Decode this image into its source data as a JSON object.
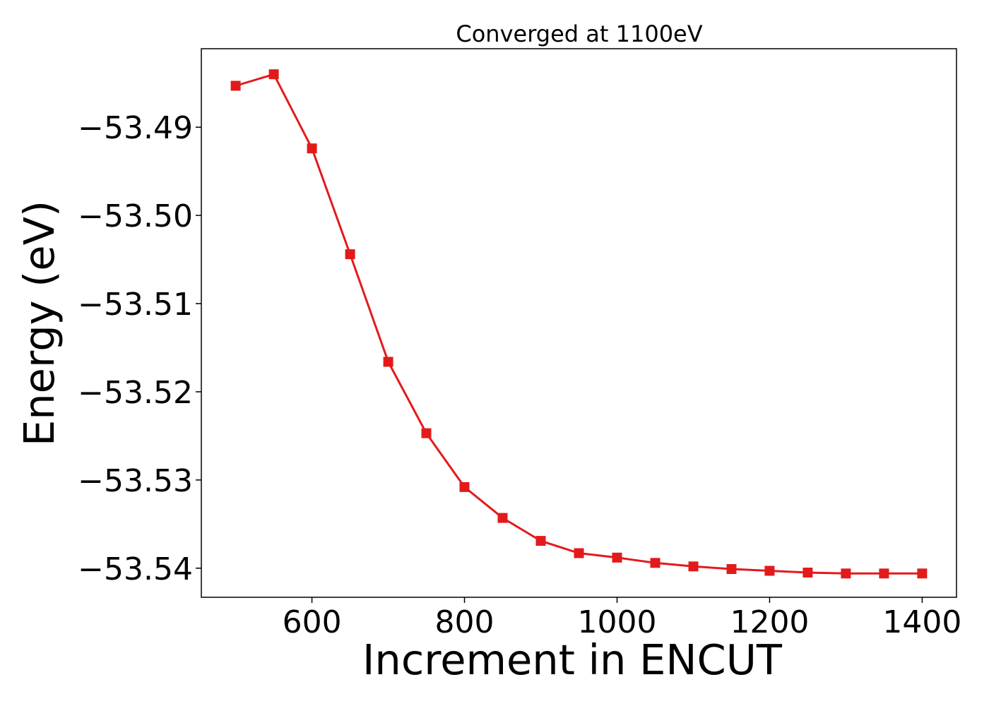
{
  "chart_data": {
    "type": "line",
    "title": "Converged at 1100eV",
    "xlabel": "Increment in ENCUT",
    "ylabel": "Energy (eV)",
    "xlim": [
      455,
      1445
    ],
    "ylim": [
      -53.5433,
      -53.4811
    ],
    "xticks": [
      {
        "value": 600,
        "label": "600"
      },
      {
        "value": 800,
        "label": "800"
      },
      {
        "value": 1000,
        "label": "1000"
      },
      {
        "value": 1200,
        "label": "1200"
      },
      {
        "value": 1400,
        "label": "1400"
      }
    ],
    "yticks": [
      {
        "value": -53.49,
        "label": "−53.49"
      },
      {
        "value": -53.5,
        "label": "−53.50"
      },
      {
        "value": -53.51,
        "label": "−53.51"
      },
      {
        "value": -53.52,
        "label": "−53.52"
      },
      {
        "value": -53.53,
        "label": "−53.53"
      },
      {
        "value": -53.54,
        "label": "−53.54"
      }
    ],
    "grid": false,
    "marker": "square",
    "series": [
      {
        "color": "#e31a1c",
        "x": [
          500,
          550,
          600,
          650,
          700,
          750,
          800,
          850,
          900,
          950,
          1000,
          1050,
          1100,
          1150,
          1200,
          1250,
          1300,
          1350,
          1400
        ],
        "y": [
          -53.4853,
          -53.484,
          -53.4924,
          -53.5044,
          -53.5166,
          -53.5247,
          -53.5308,
          -53.5343,
          -53.5369,
          -53.5383,
          -53.5388,
          -53.5394,
          -53.5398,
          -53.5401,
          -53.5403,
          -53.5405,
          -53.5406,
          -53.5406,
          -53.5406
        ]
      }
    ]
  }
}
